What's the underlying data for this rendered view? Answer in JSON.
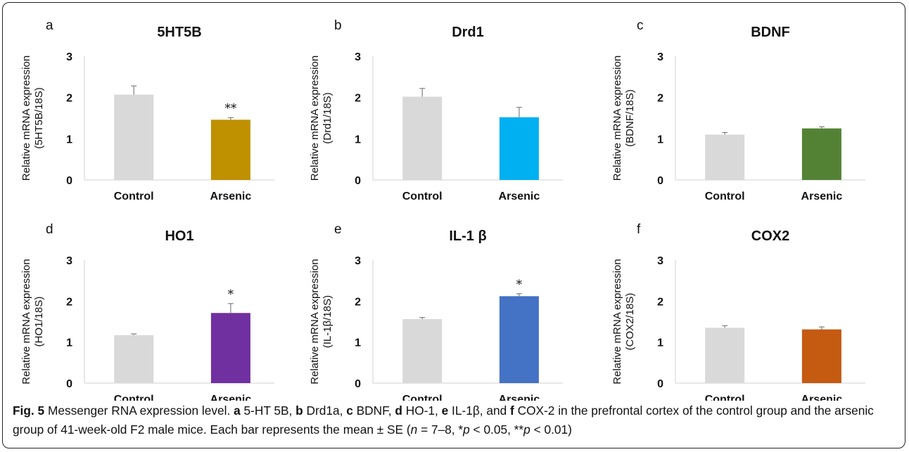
{
  "chart_data": [
    {
      "panel": "a",
      "type": "bar",
      "title": "5HT5B",
      "ylabel": [
        "Relative mRNA expression",
        "(5HT5B/18S)"
      ],
      "categories": [
        "Control",
        "Arsenic"
      ],
      "values": [
        2.07,
        1.46
      ],
      "errors": [
        0.21,
        0.05
      ],
      "colors": [
        "#d9d9d9",
        "#bf9000"
      ],
      "significance": [
        "",
        "**"
      ],
      "ylim": [
        0,
        3
      ],
      "yticks": [
        0,
        1,
        2,
        3
      ]
    },
    {
      "panel": "b",
      "type": "bar",
      "title": "Drd1",
      "ylabel": [
        "Relative mRNA expression",
        "(Drd1/18S)"
      ],
      "categories": [
        "Control",
        "Arsenic"
      ],
      "values": [
        2.02,
        1.52
      ],
      "errors": [
        0.2,
        0.24
      ],
      "colors": [
        "#d9d9d9",
        "#00b0f0"
      ],
      "significance": [
        "",
        ""
      ],
      "ylim": [
        0,
        3
      ],
      "yticks": [
        0,
        1,
        2,
        3
      ]
    },
    {
      "panel": "c",
      "type": "bar",
      "title": "BDNF",
      "ylabel": [
        "Relative mRNA expression",
        "(BDNF/18S)"
      ],
      "categories": [
        "Control",
        "Arsenic"
      ],
      "values": [
        1.1,
        1.25
      ],
      "errors": [
        0.05,
        0.04
      ],
      "colors": [
        "#d9d9d9",
        "#548235"
      ],
      "significance": [
        "",
        ""
      ],
      "ylim": [
        0,
        3
      ],
      "yticks": [
        0,
        1,
        2,
        3
      ]
    },
    {
      "panel": "d",
      "type": "bar",
      "title": "HO1",
      "ylabel": [
        "Relative mRNA expression",
        "(HO1/18S)"
      ],
      "categories": [
        "Control",
        "Arsenic"
      ],
      "values": [
        1.17,
        1.71
      ],
      "errors": [
        0.03,
        0.23
      ],
      "colors": [
        "#d9d9d9",
        "#7030a0"
      ],
      "significance": [
        "",
        "*"
      ],
      "ylim": [
        0,
        3
      ],
      "yticks": [
        0,
        1,
        2,
        3
      ]
    },
    {
      "panel": "e",
      "type": "bar",
      "title": "IL-1 β",
      "ylabel": [
        "Relative mRNA expression",
        "(IL-1β/18S)"
      ],
      "categories": [
        "Control",
        "Arsenic"
      ],
      "values": [
        1.56,
        2.12
      ],
      "errors": [
        0.04,
        0.06
      ],
      "colors": [
        "#d9d9d9",
        "#4472c4"
      ],
      "significance": [
        "",
        "*"
      ],
      "ylim": [
        0,
        3
      ],
      "yticks": [
        0,
        1,
        2,
        3
      ]
    },
    {
      "panel": "f",
      "type": "bar",
      "title": "COX2",
      "ylabel": [
        "Relative mRNA expression",
        "(COX2/18S)"
      ],
      "categories": [
        "Control",
        "Arsenic"
      ],
      "values": [
        1.35,
        1.31
      ],
      "errors": [
        0.05,
        0.06
      ],
      "colors": [
        "#d9d9d9",
        "#c55a11"
      ],
      "significance": [
        "",
        ""
      ],
      "ylim": [
        0,
        3
      ],
      "yticks": [
        0,
        1,
        2,
        3
      ]
    }
  ],
  "caption": {
    "fig_label": "Fig. 5",
    "parts": [
      {
        "t": " Messenger RNA expression level. "
      },
      {
        "b": "a"
      },
      {
        "t": " 5-HT 5B, "
      },
      {
        "b": "b"
      },
      {
        "t": " Drd1a, "
      },
      {
        "b": "c"
      },
      {
        "t": " BDNF, "
      },
      {
        "b": "d"
      },
      {
        "t": " HO-1, "
      },
      {
        "b": "e"
      },
      {
        "t": " IL-1β, and "
      },
      {
        "b": "f"
      },
      {
        "t": " COX-2 in the prefrontal cortex of the control group and the arsenic group of 41-week-old F2 male mice. Each bar represents the mean ± SE ("
      },
      {
        "i": "n"
      },
      {
        "t": " = 7–8, *"
      },
      {
        "i": "p"
      },
      {
        "t": " < 0.05, **"
      },
      {
        "i": "p"
      },
      {
        "t": " < 0.01)"
      }
    ]
  }
}
